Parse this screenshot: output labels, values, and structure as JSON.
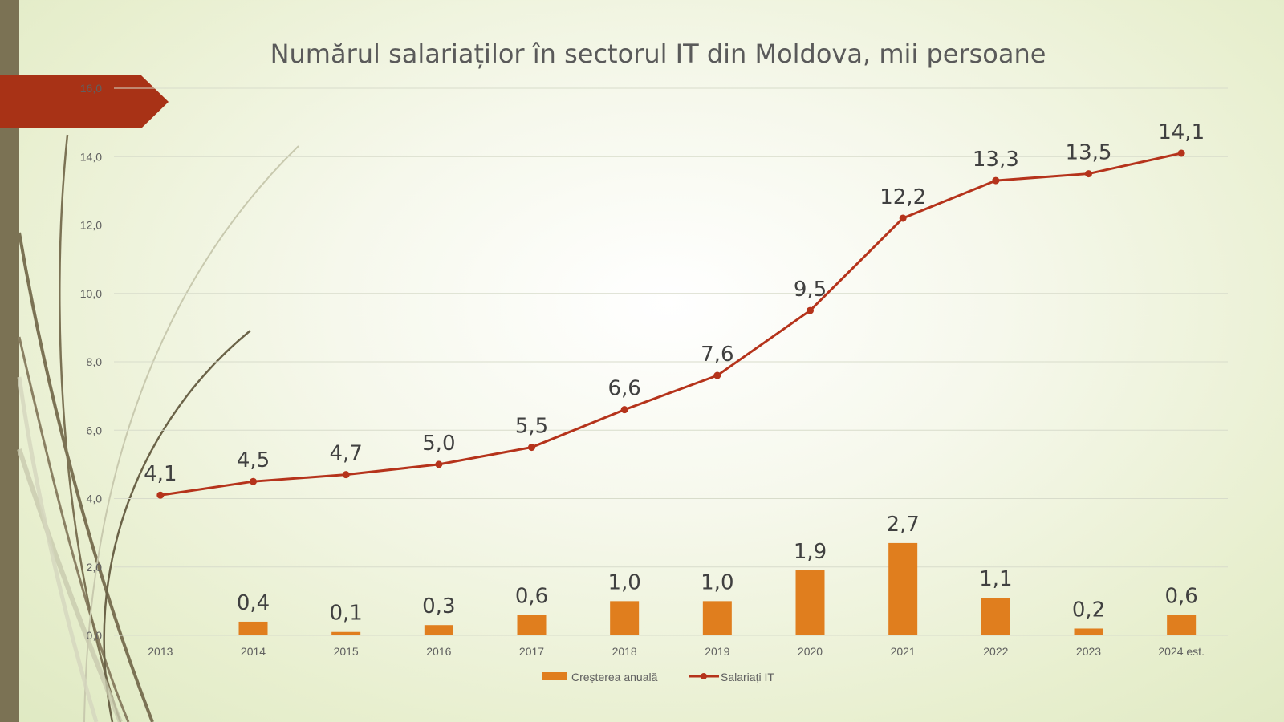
{
  "chart_data": {
    "type": "bar+line",
    "title": "Numărul salariaților în sectorul IT din Moldova, mii persoane",
    "categories": [
      "2013",
      "2014",
      "2015",
      "2016",
      "2017",
      "2018",
      "2019",
      "2020",
      "2021",
      "2022",
      "2023",
      "2024 est."
    ],
    "series": [
      {
        "name": "Creșterea anuală",
        "type": "bar",
        "color": "#e07e1e",
        "values": [
          null,
          0.4,
          0.1,
          0.3,
          0.6,
          1.0,
          1.0,
          1.9,
          2.7,
          1.1,
          0.2,
          0.6
        ],
        "labels": [
          "",
          "0,4",
          "0,1",
          "0,3",
          "0,6",
          "1,0",
          "1,0",
          "1,9",
          "2,7",
          "1,1",
          "0,2",
          "0,6"
        ]
      },
      {
        "name": "Salariați IT",
        "type": "line",
        "color": "#b5331b",
        "values": [
          4.1,
          4.5,
          4.7,
          5.0,
          5.5,
          6.6,
          7.6,
          9.5,
          12.2,
          13.3,
          13.5,
          14.1
        ],
        "labels": [
          "4,1",
          "4,5",
          "4,7",
          "5,0",
          "5,5",
          "6,6",
          "7,6",
          "9,5",
          "12,2",
          "13,3",
          "13,5",
          "14,1"
        ]
      }
    ],
    "ylim": [
      0,
      16
    ],
    "yticks": [
      0,
      2,
      4,
      6,
      8,
      10,
      12,
      14,
      16
    ],
    "ytick_labels": [
      "0,0",
      "2,0",
      "4,0",
      "6,0",
      "8,0",
      "10,0",
      "12,0",
      "14,0",
      "16,0"
    ],
    "grid": true,
    "legend_position": "bottom"
  },
  "theme": {
    "accent_tab_color": "#a83216",
    "side_bar_color": "#7b7254",
    "grid_color": "#d8dccb"
  }
}
